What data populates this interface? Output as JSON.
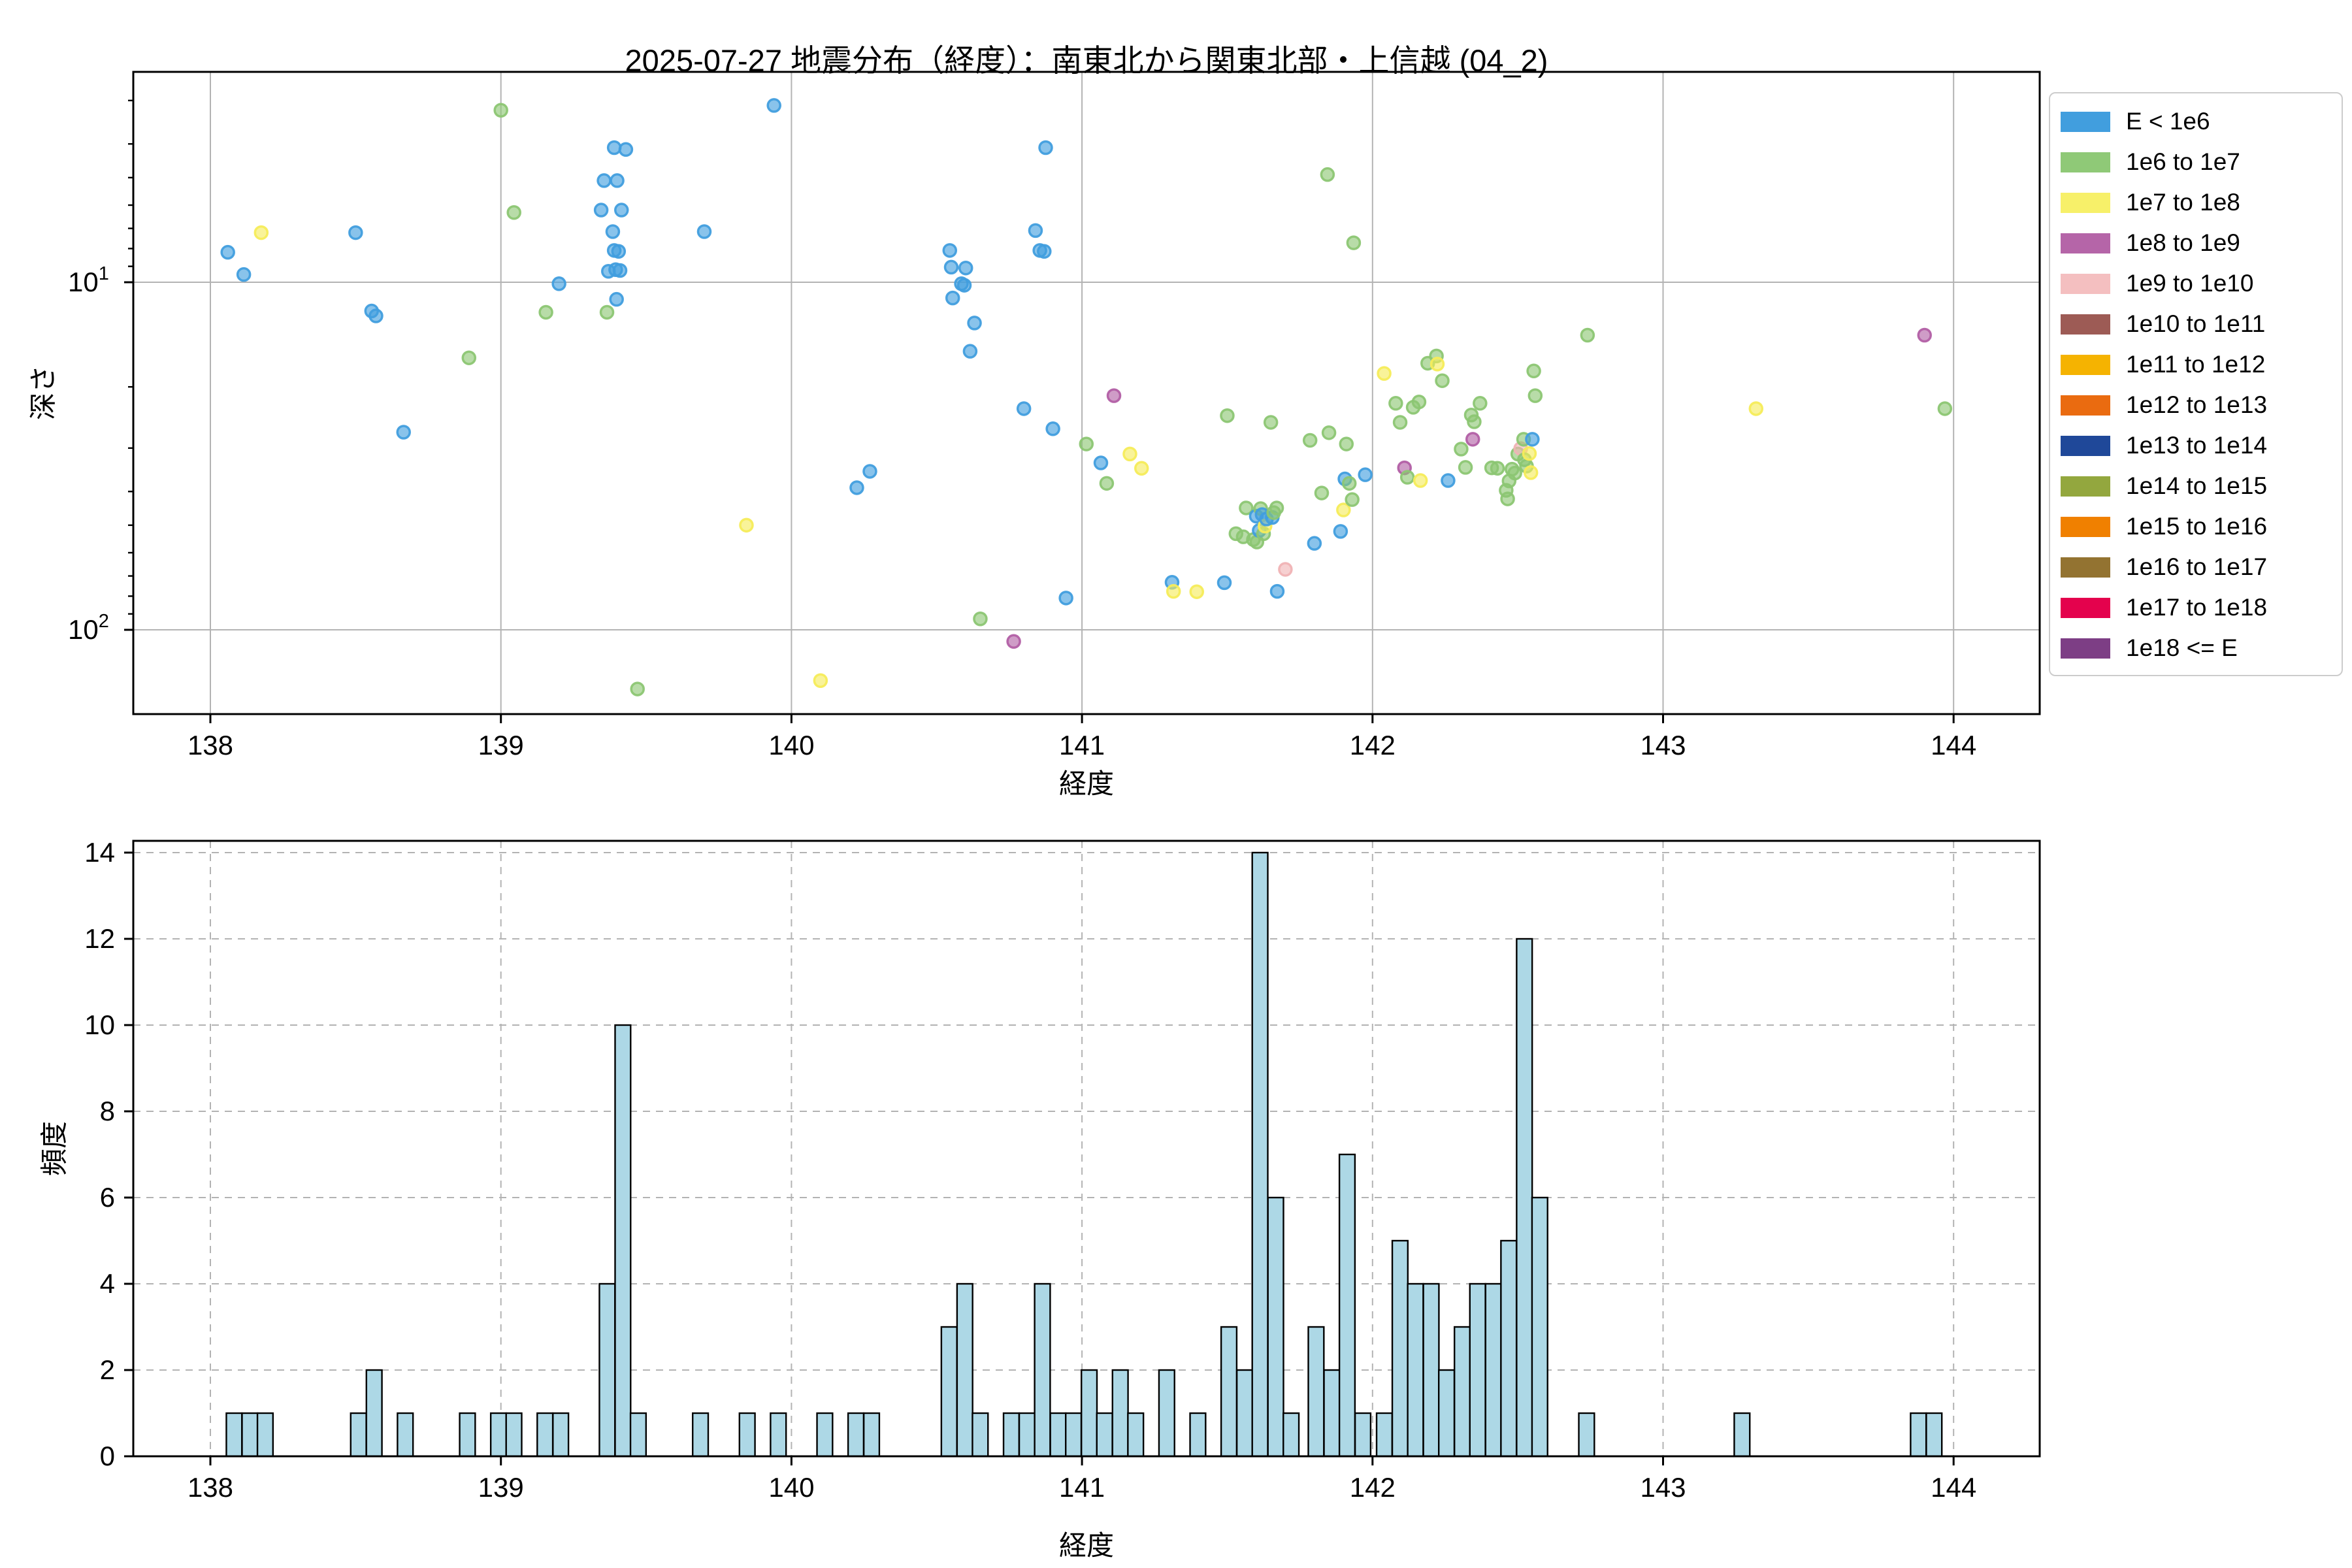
{
  "title": "2025-07-27 地震分布（経度）：南東北から関東北部・上信越 (04_2)",
  "legend": {
    "entries": [
      {
        "label": "E < 1e6",
        "color": "#419ede"
      },
      {
        "label": "1e6 to 1e7",
        "color": "#8fc977"
      },
      {
        "label": "1e7 to 1e8",
        "color": "#f7f069"
      },
      {
        "label": "1e8 to 1e9",
        "color": "#b565a8"
      },
      {
        "label": "1e9 to 1e10",
        "color": "#f4bfc0"
      },
      {
        "label": "1e10 to 1e11",
        "color": "#9d5b55"
      },
      {
        "label": "1e11 to 1e12",
        "color": "#f5b301"
      },
      {
        "label": "1e12 to 1e13",
        "color": "#ea6b10"
      },
      {
        "label": "1e13 to 1e14",
        "color": "#1f4899"
      },
      {
        "label": "1e14 to 1e15",
        "color": "#93a73e"
      },
      {
        "label": "1e15 to 1e16",
        "color": "#f08000"
      },
      {
        "label": "1e16 to 1e17",
        "color": "#937331"
      },
      {
        "label": "1e17 to 1e18",
        "color": "#e4024d"
      },
      {
        "label": "1e18 <= E",
        "color": "#7d3e85"
      }
    ]
  },
  "chart_data": [
    {
      "type": "scatter",
      "title": "2025-07-27 地震分布（経度）：南東北から関東北部・上信越 (04_2)",
      "xlabel": "経度",
      "ylabel": "深さ",
      "xlim": [
        137.735,
        144.297
      ],
      "ylim_depth": [
        2.5,
        175
      ],
      "y_scale": "log-inverted",
      "xticks": [
        138,
        139,
        140,
        141,
        142,
        143,
        144
      ],
      "yticks": [
        {
          "base": "10",
          "sup": "1",
          "value": 10
        },
        {
          "base": "10",
          "sup": "2",
          "value": 100
        }
      ],
      "yticks_minor": [
        3,
        4,
        5,
        6,
        7,
        8,
        9,
        20,
        30,
        40,
        50,
        60,
        70,
        80,
        90
      ],
      "grid": "solid",
      "legend_position": "upper right outside",
      "point_categories": [
        "E < 1e6",
        "1e6 to 1e7",
        "1e7 to 1e8",
        "1e8 to 1e9",
        "1e9 to 1e10"
      ],
      "point_colors": [
        "#419ede",
        "#8cc673",
        "#f5ec5a",
        "#b25fa5",
        "#f0b3b5"
      ],
      "points": [
        [
          138.06,
          8.2,
          0
        ],
        [
          138.115,
          9.5,
          0
        ],
        [
          138.175,
          7.2,
          2
        ],
        [
          138.5,
          7.2,
          0
        ],
        [
          138.555,
          12.1,
          0
        ],
        [
          138.57,
          12.5,
          0
        ],
        [
          138.665,
          27.0,
          0
        ],
        [
          138.89,
          16.5,
          1
        ],
        [
          139.0,
          3.2,
          1
        ],
        [
          139.045,
          6.3,
          1
        ],
        [
          139.155,
          12.2,
          1
        ],
        [
          139.2,
          10.1,
          0
        ],
        [
          139.345,
          6.2,
          0
        ],
        [
          139.355,
          5.1,
          0
        ],
        [
          139.37,
          9.3,
          0
        ],
        [
          139.365,
          12.2,
          1
        ],
        [
          139.39,
          4.1,
          0
        ],
        [
          139.43,
          4.15,
          0
        ],
        [
          139.4,
          5.1,
          0
        ],
        [
          139.415,
          6.2,
          0
        ],
        [
          139.385,
          7.15,
          0
        ],
        [
          139.39,
          8.1,
          0
        ],
        [
          139.405,
          8.15,
          0
        ],
        [
          139.395,
          9.2,
          0
        ],
        [
          139.41,
          9.25,
          0
        ],
        [
          139.398,
          11.2,
          0
        ],
        [
          139.47,
          148,
          1
        ],
        [
          139.7,
          7.15,
          0
        ],
        [
          139.845,
          50,
          2
        ],
        [
          139.94,
          3.1,
          0
        ],
        [
          140.1,
          140,
          2
        ],
        [
          140.225,
          39,
          0
        ],
        [
          140.27,
          35,
          0
        ],
        [
          140.545,
          8.1,
          0
        ],
        [
          140.55,
          9.05,
          0
        ],
        [
          140.555,
          11.1,
          0
        ],
        [
          140.585,
          10.1,
          0
        ],
        [
          140.595,
          10.2,
          0
        ],
        [
          140.6,
          9.1,
          0
        ],
        [
          140.615,
          15.8,
          0
        ],
        [
          140.63,
          13.1,
          0
        ],
        [
          140.65,
          93,
          1
        ],
        [
          140.765,
          108,
          3
        ],
        [
          140.8,
          23.1,
          0
        ],
        [
          140.84,
          7.1,
          0
        ],
        [
          140.855,
          8.1,
          0
        ],
        [
          140.87,
          8.15,
          0
        ],
        [
          140.875,
          4.1,
          0
        ],
        [
          140.9,
          26.4,
          0
        ],
        [
          140.945,
          81,
          0
        ],
        [
          141.015,
          29.2,
          1
        ],
        [
          141.065,
          33.1,
          0
        ],
        [
          141.085,
          37.9,
          1
        ],
        [
          141.11,
          21.2,
          3
        ],
        [
          141.165,
          31.2,
          2
        ],
        [
          141.205,
          34.3,
          2
        ],
        [
          141.31,
          73,
          0
        ],
        [
          141.315,
          77.5,
          2
        ],
        [
          141.395,
          77.7,
          2
        ],
        [
          141.49,
          73.2,
          0
        ],
        [
          141.5,
          24.2,
          1
        ],
        [
          141.53,
          52.9,
          1
        ],
        [
          141.555,
          54.0,
          1
        ],
        [
          141.565,
          44.6,
          1
        ],
        [
          141.59,
          55.0,
          1
        ],
        [
          141.6,
          47.1,
          0
        ],
        [
          141.602,
          55.9,
          1
        ],
        [
          141.61,
          51.8,
          0
        ],
        [
          141.615,
          44.8,
          1
        ],
        [
          141.62,
          46.6,
          0
        ],
        [
          141.625,
          52.9,
          1
        ],
        [
          141.63,
          50.3,
          2
        ],
        [
          141.635,
          48.0,
          0
        ],
        [
          141.65,
          25.3,
          1
        ],
        [
          141.655,
          47.5,
          0
        ],
        [
          141.66,
          46.0,
          1
        ],
        [
          141.67,
          44.6,
          1
        ],
        [
          141.672,
          77.5,
          0
        ],
        [
          141.7,
          67.0,
          4
        ],
        [
          141.785,
          28.5,
          1
        ],
        [
          141.8,
          56.4,
          0
        ],
        [
          141.825,
          40.4,
          1
        ],
        [
          141.845,
          4.9,
          1
        ],
        [
          141.85,
          27.1,
          1
        ],
        [
          141.89,
          52.1,
          0
        ],
        [
          141.9,
          45.2,
          2
        ],
        [
          141.905,
          36.8,
          0
        ],
        [
          141.91,
          29.2,
          1
        ],
        [
          141.92,
          37.9,
          1
        ],
        [
          141.93,
          42.2,
          1
        ],
        [
          141.935,
          7.7,
          1
        ],
        [
          141.975,
          35.8,
          0
        ],
        [
          142.04,
          18.3,
          2
        ],
        [
          142.08,
          22.3,
          1
        ],
        [
          142.095,
          25.3,
          1
        ],
        [
          142.11,
          34.2,
          3
        ],
        [
          142.12,
          36.4,
          1
        ],
        [
          142.14,
          22.9,
          1
        ],
        [
          142.16,
          22.1,
          1
        ],
        [
          142.165,
          37.2,
          2
        ],
        [
          142.19,
          17.1,
          1
        ],
        [
          142.22,
          16.3,
          1
        ],
        [
          142.223,
          17.2,
          2
        ],
        [
          142.24,
          19.2,
          1
        ],
        [
          142.26,
          37.2,
          0
        ],
        [
          142.305,
          30.2,
          1
        ],
        [
          142.32,
          34.1,
          1
        ],
        [
          142.34,
          24.1,
          1
        ],
        [
          142.345,
          28.3,
          3
        ],
        [
          142.35,
          25.2,
          1
        ],
        [
          142.37,
          22.3,
          1
        ],
        [
          142.41,
          34.2,
          1
        ],
        [
          142.43,
          34.3,
          1
        ],
        [
          142.46,
          39.7,
          1
        ],
        [
          142.465,
          42.0,
          1
        ],
        [
          142.47,
          37.3,
          1
        ],
        [
          142.48,
          34.5,
          1
        ],
        [
          142.49,
          35.4,
          1
        ],
        [
          142.5,
          31.2,
          1
        ],
        [
          142.51,
          30.1,
          4
        ],
        [
          142.52,
          28.3,
          1
        ],
        [
          142.523,
          32.4,
          1
        ],
        [
          142.53,
          33.8,
          1
        ],
        [
          142.54,
          31.1,
          2
        ],
        [
          142.545,
          35.3,
          2
        ],
        [
          142.55,
          28.3,
          0
        ],
        [
          142.555,
          18.0,
          1
        ],
        [
          142.56,
          21.2,
          1
        ],
        [
          142.74,
          14.2,
          1
        ],
        [
          143.32,
          23.1,
          2
        ],
        [
          143.9,
          14.2,
          3
        ],
        [
          143.97,
          23.1,
          1
        ]
      ]
    },
    {
      "type": "bar",
      "xlabel": "経度",
      "ylabel": "頻度",
      "xlim": [
        137.735,
        144.297
      ],
      "ylim": [
        0,
        14.27
      ],
      "xticks": [
        138,
        139,
        140,
        141,
        142,
        143,
        144
      ],
      "yticks": [
        0,
        2,
        4,
        6,
        8,
        10,
        12,
        14
      ],
      "grid": "dashed",
      "bar_color": "#add8e6",
      "bar_edge_color": "#000000",
      "bin_width": 0.0535,
      "bars": [
        {
          "x": 138.055,
          "h": 1
        },
        {
          "x": 138.109,
          "h": 1
        },
        {
          "x": 138.162,
          "h": 1
        },
        {
          "x": 138.483,
          "h": 1
        },
        {
          "x": 138.537,
          "h": 2
        },
        {
          "x": 138.644,
          "h": 1
        },
        {
          "x": 138.858,
          "h": 1
        },
        {
          "x": 138.965,
          "h": 1
        },
        {
          "x": 139.018,
          "h": 1
        },
        {
          "x": 139.125,
          "h": 1
        },
        {
          "x": 139.179,
          "h": 1
        },
        {
          "x": 139.339,
          "h": 4
        },
        {
          "x": 139.393,
          "h": 10
        },
        {
          "x": 139.446,
          "h": 1
        },
        {
          "x": 139.66,
          "h": 1
        },
        {
          "x": 139.821,
          "h": 1
        },
        {
          "x": 139.928,
          "h": 1
        },
        {
          "x": 140.088,
          "h": 1
        },
        {
          "x": 140.195,
          "h": 1
        },
        {
          "x": 140.249,
          "h": 1
        },
        {
          "x": 140.516,
          "h": 3
        },
        {
          "x": 140.57,
          "h": 4
        },
        {
          "x": 140.623,
          "h": 1
        },
        {
          "x": 140.73,
          "h": 1
        },
        {
          "x": 140.784,
          "h": 1
        },
        {
          "x": 140.837,
          "h": 4
        },
        {
          "x": 140.891,
          "h": 1
        },
        {
          "x": 140.944,
          "h": 1
        },
        {
          "x": 140.998,
          "h": 2
        },
        {
          "x": 141.051,
          "h": 1
        },
        {
          "x": 141.105,
          "h": 2
        },
        {
          "x": 141.158,
          "h": 1
        },
        {
          "x": 141.265,
          "h": 2
        },
        {
          "x": 141.372,
          "h": 1
        },
        {
          "x": 141.479,
          "h": 3
        },
        {
          "x": 141.533,
          "h": 2
        },
        {
          "x": 141.586,
          "h": 14
        },
        {
          "x": 141.64,
          "h": 6
        },
        {
          "x": 141.693,
          "h": 1
        },
        {
          "x": 141.779,
          "h": 3
        },
        {
          "x": 141.833,
          "h": 2
        },
        {
          "x": 141.886,
          "h": 7
        },
        {
          "x": 141.94,
          "h": 1
        },
        {
          "x": 142.014,
          "h": 1
        },
        {
          "x": 142.068,
          "h": 5
        },
        {
          "x": 142.121,
          "h": 4
        },
        {
          "x": 142.175,
          "h": 4
        },
        {
          "x": 142.228,
          "h": 2
        },
        {
          "x": 142.282,
          "h": 3
        },
        {
          "x": 142.335,
          "h": 4
        },
        {
          "x": 142.389,
          "h": 4
        },
        {
          "x": 142.442,
          "h": 5
        },
        {
          "x": 142.496,
          "h": 12
        },
        {
          "x": 142.549,
          "h": 6
        },
        {
          "x": 142.71,
          "h": 1
        },
        {
          "x": 143.245,
          "h": 1
        },
        {
          "x": 143.852,
          "h": 1
        },
        {
          "x": 143.906,
          "h": 1
        }
      ]
    }
  ]
}
